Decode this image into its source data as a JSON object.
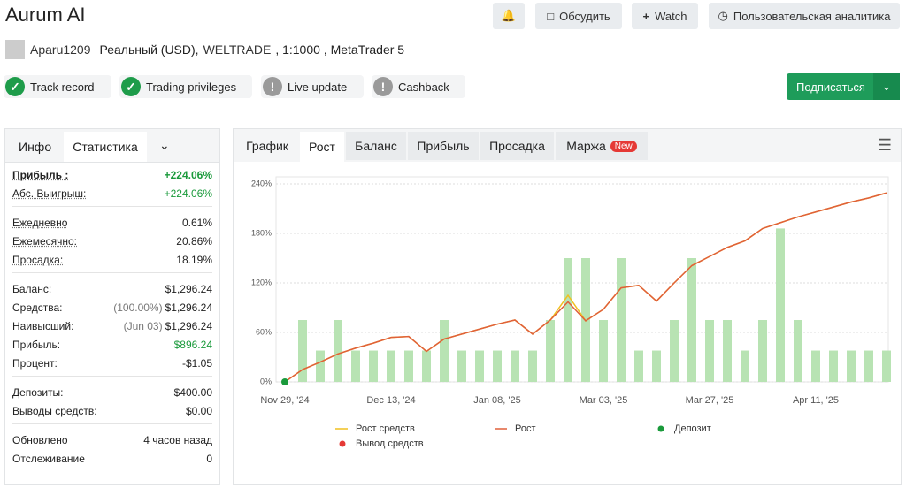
{
  "header": {
    "title": "Aurum AI",
    "buttons": [
      "Обсудить",
      "Watch",
      "Пользовательская аналитика"
    ]
  },
  "account": {
    "user": "Aparu1209",
    "type": "Реальный (USD),",
    "broker": "WELTRADE",
    "details": ", 1:1000 , MetaTrader 5"
  },
  "badges": [
    {
      "label": "Track record",
      "ok": true
    },
    {
      "label": "Trading privileges",
      "ok": true
    },
    {
      "label": "Live update",
      "ok": false
    },
    {
      "label": "Cashback",
      "ok": false
    }
  ],
  "subscribe": "Подписаться",
  "left_tabs": [
    "Инфо",
    "Статистика"
  ],
  "stats": [
    [
      {
        "label": "Прибыль :",
        "value": "+224.06%",
        "color": "#1a9a3b",
        "bold": true
      },
      {
        "label": "Абс. Выигрыш:",
        "value": "+224.06%",
        "color": "#1a9a3b"
      }
    ],
    [
      {
        "label": "Ежедневно",
        "value": "0.61%"
      },
      {
        "label": "Ежемесячно:",
        "value": "20.86%"
      },
      {
        "label": "Просадка:",
        "value": "18.19%"
      }
    ],
    [
      {
        "label": "Баланс:",
        "value": "$1,296.24"
      },
      {
        "label": "Средства:",
        "note": "(100.00%)",
        "value": "$1,296.24"
      },
      {
        "label": "Наивысший:",
        "note": "(Jun 03)",
        "value": "$1,296.24"
      },
      {
        "label": "Прибыль:",
        "value": "$896.24",
        "color": "#1a9a3b"
      },
      {
        "label": "Процент:",
        "value": "-$1.05"
      }
    ],
    [
      {
        "label": "Депозиты:",
        "value": "$400.00"
      },
      {
        "label": "Выводы средств:",
        "value": "$0.00"
      }
    ],
    [
      {
        "label": "Обновлено",
        "value": "4 часов назад"
      },
      {
        "label": "Отслеживание",
        "value": "0"
      }
    ]
  ],
  "chart_tabs": [
    "График",
    "Рост",
    "Баланс",
    "Прибыль",
    "Просадка",
    "Маржа"
  ],
  "new_badge": "New",
  "chart_data": {
    "type": "bar",
    "grid": true,
    "categories": [
      "Nov 29, '24",
      null,
      null,
      null,
      null,
      null,
      "Dec 13, '24",
      null,
      null,
      null,
      null,
      null,
      "Jan 08, '25",
      null,
      null,
      null,
      null,
      null,
      "Mar 03, '25",
      null,
      null,
      null,
      null,
      null,
      "Mar 27, '25",
      null,
      null,
      null,
      null,
      null,
      "Apr 11, '25",
      null,
      null,
      null,
      null
    ],
    "ylim": [
      0,
      240
    ],
    "yticks": [
      {
        "value": 0,
        "label": "0%"
      },
      {
        "value": 60,
        "label": "60%"
      },
      {
        "value": 120,
        "label": "120%"
      },
      {
        "value": 180,
        "label": "180%"
      },
      {
        "value": 240,
        "label": "240%"
      }
    ],
    "series": [
      {
        "type": "bar",
        "color": "#b8e3b3",
        "values": [
          null,
          75,
          38,
          75,
          38,
          38,
          38,
          38,
          38,
          75,
          38,
          38,
          38,
          38,
          38,
          75,
          150,
          150,
          75,
          150,
          38,
          38,
          75,
          150,
          75,
          75,
          38,
          75,
          186,
          75,
          38,
          38,
          38,
          38,
          38
        ]
      },
      {
        "type": "line",
        "name": "Рост средств",
        "color": "#f0c020",
        "values": [
          0,
          15,
          24,
          34,
          41,
          47,
          54,
          55,
          37,
          52,
          58,
          64,
          70,
          75,
          58,
          75,
          105,
          74,
          88,
          114,
          117,
          98,
          120,
          141,
          152,
          163,
          171,
          186,
          193,
          200,
          206,
          212,
          218,
          223,
          229
        ]
      },
      {
        "type": "line",
        "name": "Рост",
        "color": "#e0603a",
        "values": [
          0,
          15,
          24,
          34,
          41,
          47,
          54,
          55,
          37,
          52,
          58,
          64,
          70,
          75,
          58,
          75,
          97,
          74,
          88,
          114,
          117,
          98,
          120,
          141,
          152,
          163,
          171,
          186,
          193,
          200,
          206,
          212,
          218,
          223,
          229
        ]
      },
      {
        "type": "scatter",
        "name": "Депозит",
        "color": "#1a9a3b",
        "values": [
          0,
          null,
          null,
          null,
          null,
          null,
          null,
          null,
          null,
          null,
          null,
          null,
          null,
          null,
          null,
          null,
          null,
          null,
          null,
          null,
          null,
          null,
          null,
          null,
          null,
          null,
          null,
          null,
          null,
          null,
          null,
          null,
          null,
          null,
          null
        ]
      },
      {
        "type": "scatter",
        "name": "Вывод средств",
        "color": "#e53935",
        "values": [
          null,
          null,
          null,
          null,
          null,
          null,
          null,
          null,
          null,
          null,
          null,
          null,
          null,
          null,
          null,
          null,
          null,
          null,
          null,
          null,
          null,
          null,
          null,
          null,
          null,
          null,
          null,
          null,
          null,
          null,
          null,
          null,
          null,
          null,
          null
        ]
      }
    ]
  }
}
